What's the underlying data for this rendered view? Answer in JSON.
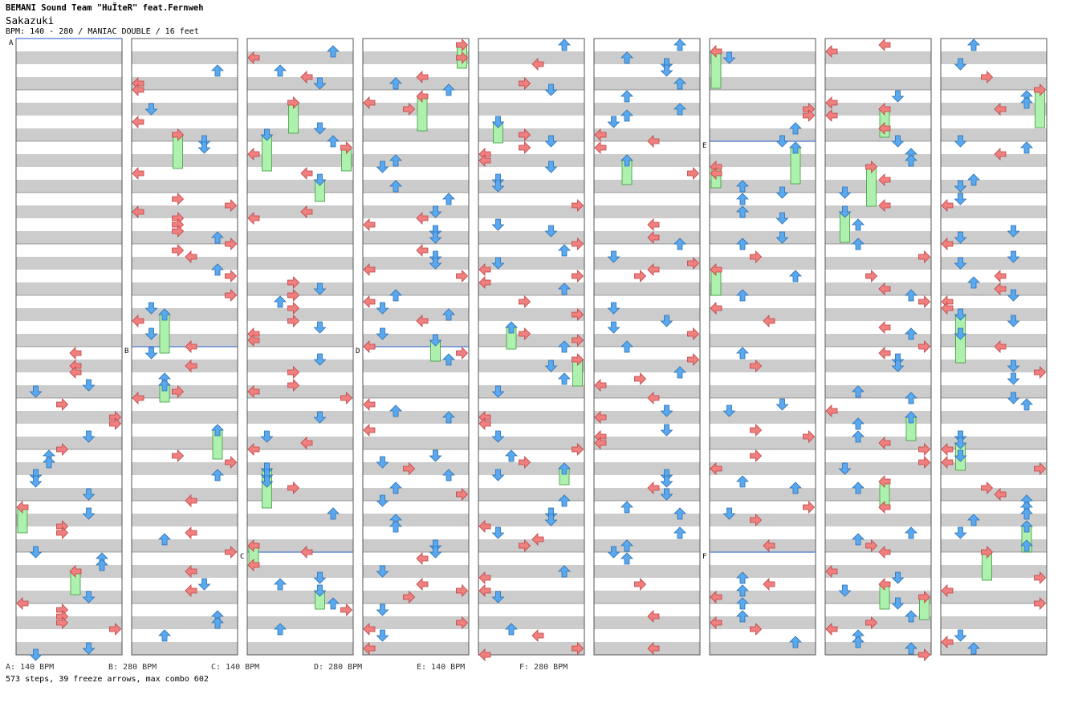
{
  "song": {
    "artist": "BEMANI Sound Team \"HuΪteR\" feat.Fernweh",
    "title": "Sakazuki",
    "meta": "BPM: 140 - 280 / MANIAC DOUBLE / 16 feet"
  },
  "bpm_legend": [
    {
      "label": "A: 140 BPM"
    },
    {
      "label": "B: 280 BPM"
    },
    {
      "label": "C: 140 BPM"
    },
    {
      "label": "D: 280 BPM"
    },
    {
      "label": "E: 140 BPM"
    },
    {
      "label": "F: 280 BPM"
    }
  ],
  "stats": "573 steps, 39 freeze arrows, max combo 602",
  "markers": [
    {
      "label": "A",
      "column": 1,
      "measure": 0
    },
    {
      "label": "B",
      "column": 2,
      "measure": 6
    },
    {
      "label": "C",
      "column": 3,
      "measure": 10
    },
    {
      "label": "D",
      "column": 4,
      "measure": 6
    },
    {
      "label": "E",
      "column": 7,
      "measure": 2
    },
    {
      "label": "F",
      "column": 7,
      "measure": 10
    }
  ],
  "colors": {
    "left_note": "#f08080",
    "down_note": "#5aa9f0",
    "up_note": "#5aa9f0",
    "right_note": "#f08080",
    "jump_note": "#f0a0f0",
    "freeze": "#aef0ae",
    "band": "#cccccc",
    "bpm_line": "#4a78d0"
  }
}
